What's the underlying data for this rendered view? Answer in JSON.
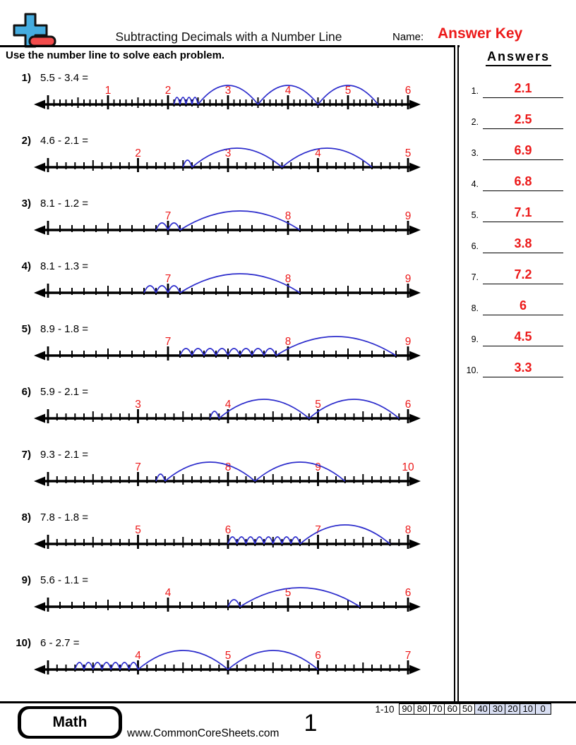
{
  "header": {
    "title": "Subtracting Decimals with a Number Line",
    "name_label": "Name:",
    "answer_key": "Answer Key"
  },
  "instruction": "Use the number line to solve each problem.",
  "answers_panel": {
    "title": "Answers"
  },
  "problems": [
    {
      "num": "1)",
      "answer_label": "1.",
      "equation": "5.5 - 3.4 =",
      "minuend": 5.5,
      "subtrahend": 3.4,
      "answer": "2.1",
      "line": {
        "tick_min": 0,
        "tick_max": 6,
        "labels": [
          1,
          2,
          3,
          4,
          5,
          6
        ]
      },
      "jumps": {
        "ones": 3,
        "tenths": 4
      }
    },
    {
      "num": "2)",
      "answer_label": "2.",
      "equation": "4.6 - 2.1 =",
      "minuend": 4.6,
      "subtrahend": 2.1,
      "answer": "2.5",
      "line": {
        "tick_min": 1,
        "tick_max": 5,
        "labels": [
          2,
          3,
          4,
          5
        ]
      },
      "jumps": {
        "ones": 2,
        "tenths": 1
      }
    },
    {
      "num": "3)",
      "answer_label": "3.",
      "equation": "8.1 - 1.2 =",
      "minuend": 8.1,
      "subtrahend": 1.2,
      "answer": "6.9",
      "line": {
        "tick_min": 6,
        "tick_max": 9,
        "labels": [
          7,
          8,
          9
        ]
      },
      "jumps": {
        "ones": 1,
        "tenths": 2
      }
    },
    {
      "num": "4)",
      "answer_label": "4.",
      "equation": "8.1 - 1.3 =",
      "minuend": 8.1,
      "subtrahend": 1.3,
      "answer": "6.8",
      "line": {
        "tick_min": 6,
        "tick_max": 9,
        "labels": [
          7,
          8,
          9
        ]
      },
      "jumps": {
        "ones": 1,
        "tenths": 3
      }
    },
    {
      "num": "5)",
      "answer_label": "5.",
      "equation": "8.9 - 1.8 =",
      "minuend": 8.9,
      "subtrahend": 1.8,
      "answer": "7.1",
      "line": {
        "tick_min": 6,
        "tick_max": 9,
        "labels": [
          7,
          8,
          9
        ]
      },
      "jumps": {
        "ones": 1,
        "tenths": 8
      }
    },
    {
      "num": "6)",
      "answer_label": "6.",
      "equation": "5.9 - 2.1 =",
      "minuend": 5.9,
      "subtrahend": 2.1,
      "answer": "3.8",
      "line": {
        "tick_min": 2,
        "tick_max": 6,
        "labels": [
          3,
          4,
          5,
          6
        ]
      },
      "jumps": {
        "ones": 2,
        "tenths": 1
      }
    },
    {
      "num": "7)",
      "answer_label": "7.",
      "equation": "9.3 - 2.1 =",
      "minuend": 9.3,
      "subtrahend": 2.1,
      "answer": "7.2",
      "line": {
        "tick_min": 6,
        "tick_max": 10,
        "labels": [
          7,
          8,
          9,
          10
        ]
      },
      "jumps": {
        "ones": 2,
        "tenths": 1
      }
    },
    {
      "num": "8)",
      "answer_label": "8.",
      "equation": "7.8 - 1.8 =",
      "minuend": 7.8,
      "subtrahend": 1.8,
      "answer": "6",
      "line": {
        "tick_min": 4,
        "tick_max": 8,
        "labels": [
          5,
          6,
          7,
          8
        ]
      },
      "jumps": {
        "ones": 1,
        "tenths": 8
      }
    },
    {
      "num": "9)",
      "answer_label": "9.",
      "equation": "5.6 - 1.1 =",
      "minuend": 5.6,
      "subtrahend": 1.1,
      "answer": "4.5",
      "line": {
        "tick_min": 3,
        "tick_max": 6,
        "labels": [
          4,
          5,
          6
        ]
      },
      "jumps": {
        "ones": 1,
        "tenths": 1
      }
    },
    {
      "num": "10)",
      "answer_label": "10.",
      "equation": "6 - 2.7 =",
      "minuend": 6,
      "subtrahend": 2.7,
      "answer": "3.3",
      "line": {
        "tick_min": 3,
        "tick_max": 7,
        "labels": [
          4,
          5,
          6,
          7
        ]
      },
      "jumps": {
        "ones": 2,
        "tenths": 7
      }
    }
  ],
  "footer": {
    "brand": "Math",
    "website": "www.CommonCoreSheets.com",
    "page": "1",
    "score_range": "1-10",
    "score_values": [
      "90",
      "80",
      "70",
      "60",
      "50",
      "40",
      "30",
      "20",
      "10",
      "0"
    ],
    "score_shaded_from": 5
  },
  "colors": {
    "answer_red": "#ec1a1a",
    "arc_blue": "#2d2dcc",
    "logo_blue": "#45ACDF",
    "logo_red": "#F24B4B",
    "score_shade": "#d9dff3"
  }
}
